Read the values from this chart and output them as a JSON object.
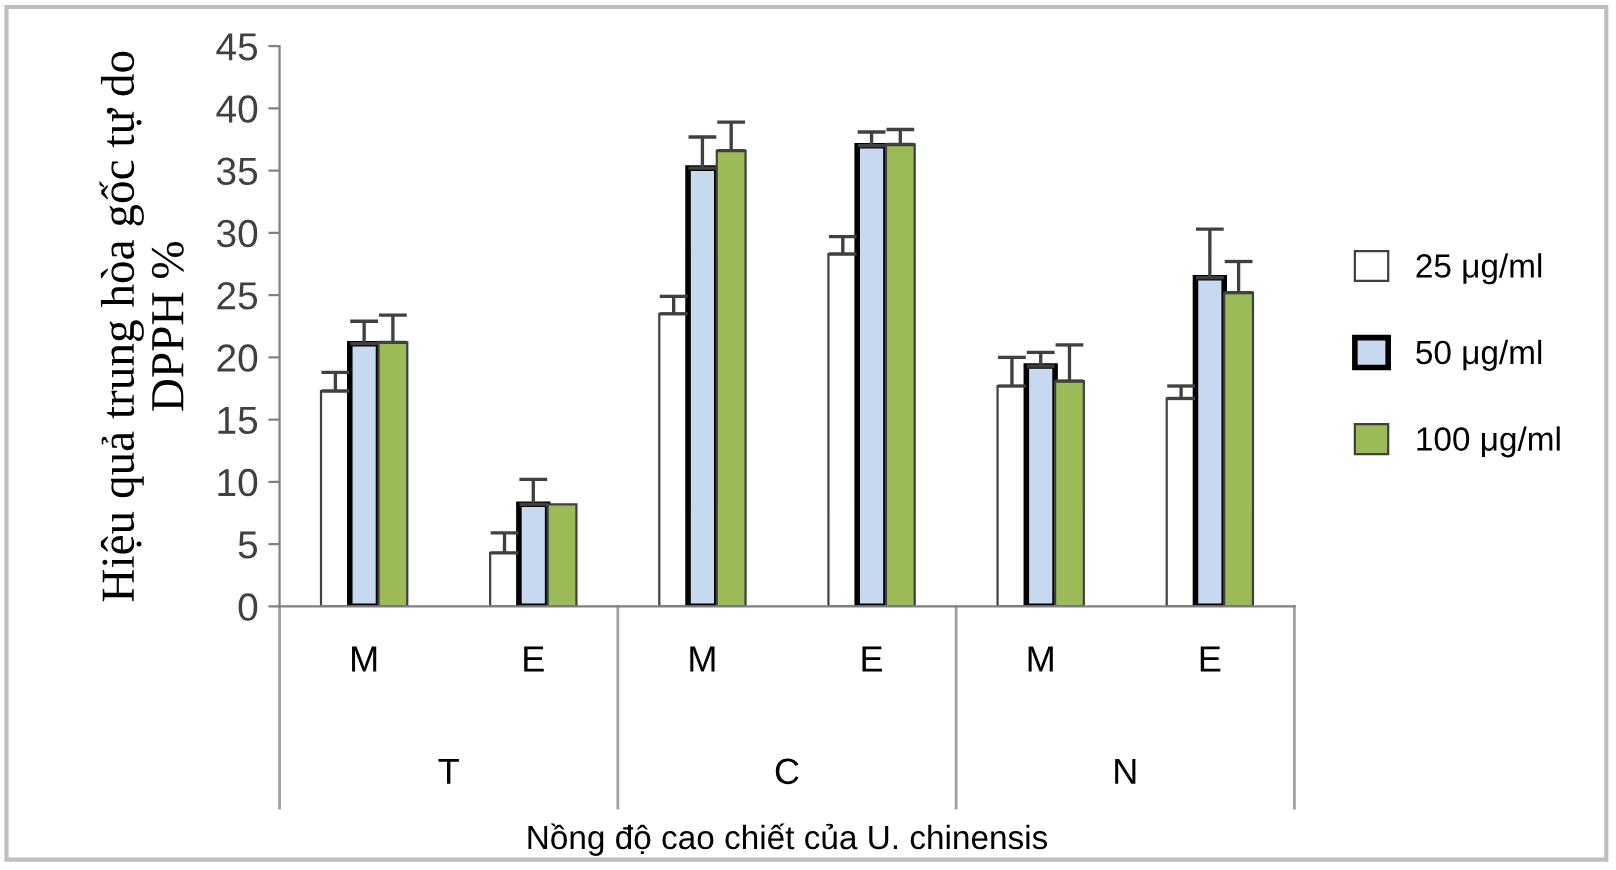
{
  "chart_data": {
    "type": "bar",
    "ylabel": "Hiệu quả trung hòa gốc tự do\nDPPH %",
    "xlabel": "Nồng độ cao chiết của U. chinensis",
    "categories": [
      "M",
      "E",
      "M",
      "E",
      "M",
      "E"
    ],
    "annotations": [
      "T",
      "C",
      "N"
    ],
    "series": [
      {
        "name": "25 μg/ml",
        "color": "#ffffff",
        "values": [
          17.3,
          4.3,
          23.5,
          28.3,
          17.7,
          16.7
        ],
        "errors": [
          [
            17.3,
            18.8
          ],
          [
            4.3,
            5.9
          ],
          [
            23.5,
            24.9
          ],
          [
            28.3,
            29.7
          ],
          [
            17.7,
            20.0
          ],
          [
            16.7,
            17.7
          ]
        ]
      },
      {
        "name": "50 μg/ml",
        "color": "#c6d9f1",
        "values": [
          21.1,
          8.2,
          35.2,
          37.0,
          19.3,
          26.4
        ],
        "errors": [
          [
            21.1,
            22.9
          ],
          [
            8.2,
            10.2
          ],
          [
            35.2,
            37.7
          ],
          [
            37.0,
            38.1
          ],
          [
            19.3,
            20.4
          ],
          [
            26.4,
            30.3
          ]
        ]
      },
      {
        "name": "100 μg/ml",
        "color": "#9bbb59",
        "values": [
          21.2,
          8.2,
          36.6,
          37.1,
          18.1,
          25.2
        ],
        "errors": [
          [
            21.2,
            23.4
          ],
          null,
          [
            36.6,
            38.9
          ],
          [
            37.1,
            38.3
          ],
          [
            18.1,
            21.0
          ],
          [
            25.2,
            27.7
          ]
        ]
      }
    ],
    "ylim": [
      0,
      45
    ],
    "yticks": [
      0,
      5,
      10,
      15,
      20,
      25,
      30,
      35,
      40,
      45
    ],
    "legend": "right"
  }
}
